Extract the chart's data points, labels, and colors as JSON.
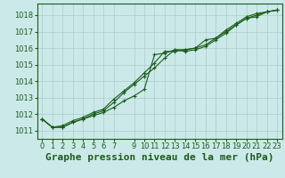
{
  "xlabel": "Graphe pression niveau de la mer (hPa)",
  "ylim": [
    1010.5,
    1018.7
  ],
  "xlim": [
    -0.5,
    23.5
  ],
  "yticks": [
    1011,
    1012,
    1013,
    1014,
    1015,
    1016,
    1017,
    1018
  ],
  "xticks": [
    0,
    1,
    2,
    3,
    4,
    5,
    6,
    7,
    9,
    10,
    11,
    12,
    13,
    14,
    15,
    16,
    17,
    18,
    19,
    20,
    21,
    22,
    23
  ],
  "background_color": "#cce9e9",
  "grid_color": "#aacccc",
  "line_color": "#1a5c1a",
  "series": [
    [
      1011.7,
      1011.2,
      1011.2,
      1011.5,
      1011.7,
      1011.9,
      1012.1,
      1012.4,
      1012.8,
      1013.1,
      1013.5,
      1015.6,
      1015.7,
      1015.9,
      1015.8,
      1015.9,
      1016.1,
      1016.5,
      1016.9,
      1017.4,
      1017.8,
      1017.9,
      1018.2,
      1018.3
    ],
    [
      1011.7,
      1011.2,
      1011.2,
      1011.5,
      1011.7,
      1012.0,
      1012.2,
      1012.7,
      1013.3,
      1013.8,
      1014.3,
      1014.8,
      1015.4,
      1015.9,
      1015.9,
      1016.0,
      1016.2,
      1016.6,
      1017.0,
      1017.4,
      1017.8,
      1018.0,
      1018.2,
      1018.3
    ],
    [
      1011.7,
      1011.2,
      1011.3,
      1011.6,
      1011.8,
      1012.1,
      1012.3,
      1012.9,
      1013.4,
      1013.9,
      1014.5,
      1015.1,
      1015.8,
      1015.8,
      1015.9,
      1016.0,
      1016.5,
      1016.6,
      1017.1,
      1017.5,
      1017.9,
      1018.1,
      1018.2,
      1018.3
    ]
  ],
  "marker": "+",
  "markersize": 3.5,
  "linewidth": 0.8,
  "tick_fontsize": 6,
  "xlabel_fontsize": 8,
  "tick_color": "#1a5c1a",
  "axis_color": "#1a5c1a",
  "xlabel_color": "#1a5c1a"
}
